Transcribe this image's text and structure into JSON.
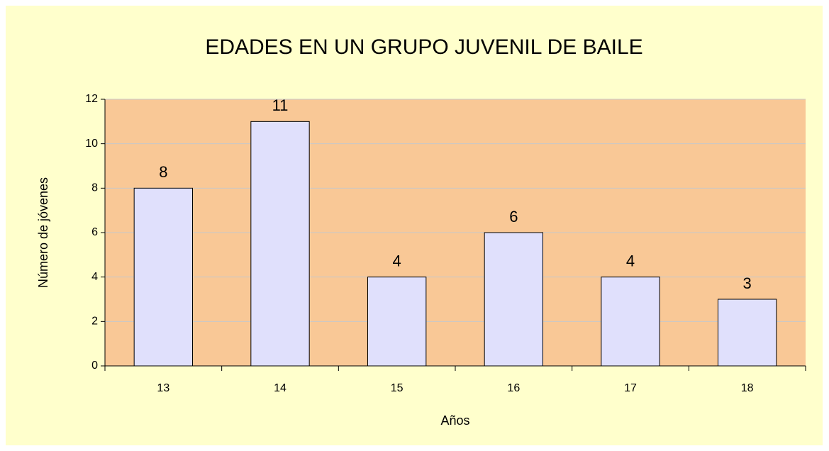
{
  "chart_data": {
    "type": "bar",
    "title": "EDADES EN UN GRUPO JUVENIL DE BAILE",
    "x_label": "Años",
    "y_label": "Número de jóvenes",
    "categories": [
      "13",
      "14",
      "15",
      "16",
      "17",
      "18"
    ],
    "values": [
      8,
      11,
      4,
      6,
      4,
      3
    ],
    "color": "#e0e0fc",
    "ylim": [
      0,
      12
    ],
    "yticks": [
      0,
      2,
      4,
      6,
      8,
      10,
      12
    ],
    "grid": true
  }
}
